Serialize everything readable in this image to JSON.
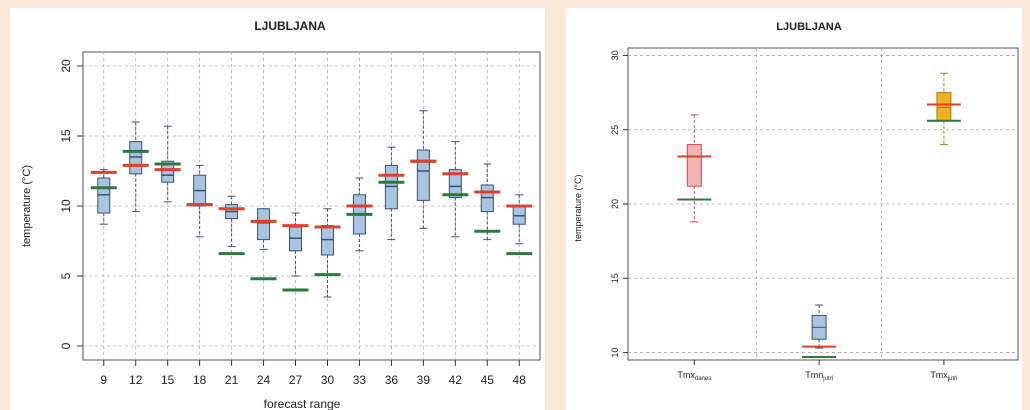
{
  "chart_data": [
    {
      "type": "boxplot",
      "title": "LJUBLJANA",
      "xlabel": "forecast range",
      "ylabel": "temperature (°C)",
      "ylim": [
        -1,
        21
      ],
      "yticks": [
        "0",
        "5",
        "10",
        "15",
        "20"
      ],
      "grid": true,
      "categories": [
        "9",
        "12",
        "15",
        "18",
        "21",
        "24",
        "27",
        "30",
        "33",
        "36",
        "39",
        "42",
        "45",
        "48"
      ],
      "boxes": [
        {
          "x": "9",
          "whisker_low": 8.7,
          "q1": 9.5,
          "median": 10.8,
          "q3": 12.0,
          "whisker_high": 12.6,
          "red": 12.4,
          "green": 11.3
        },
        {
          "x": "12",
          "whisker_low": 9.6,
          "q1": 12.3,
          "median": 13.5,
          "q3": 14.6,
          "whisker_high": 16.0,
          "red": 12.9,
          "green": 13.9
        },
        {
          "x": "15",
          "whisker_low": 10.3,
          "q1": 11.7,
          "median": 12.2,
          "q3": 13.2,
          "whisker_high": 15.7,
          "red": 12.6,
          "green": 13.0
        },
        {
          "x": "18",
          "whisker_low": 7.8,
          "q1": 10.0,
          "median": 11.1,
          "q3": 12.2,
          "whisker_high": 12.9,
          "red": 10.1,
          "green": 10.1
        },
        {
          "x": "21",
          "whisker_low": 7.1,
          "q1": 9.1,
          "median": 9.6,
          "q3": 10.1,
          "whisker_high": 10.7,
          "red": 9.8,
          "green": 6.6
        },
        {
          "x": "24",
          "whisker_low": 6.9,
          "q1": 7.6,
          "median": 8.8,
          "q3": 9.8,
          "whisker_high": 9.8,
          "red": 8.9,
          "green": 4.8
        },
        {
          "x": "27",
          "whisker_low": 5.0,
          "q1": 6.8,
          "median": 7.7,
          "q3": 8.5,
          "whisker_high": 9.5,
          "red": 8.6,
          "green": 4.0
        },
        {
          "x": "30",
          "whisker_low": 3.5,
          "q1": 6.5,
          "median": 7.6,
          "q3": 8.6,
          "whisker_high": 9.8,
          "red": 8.5,
          "green": 5.1
        },
        {
          "x": "33",
          "whisker_low": 6.8,
          "q1": 8.0,
          "median": 9.4,
          "q3": 10.8,
          "whisker_high": 12.0,
          "red": 10.0,
          "green": 9.4
        },
        {
          "x": "36",
          "whisker_low": 7.6,
          "q1": 9.8,
          "median": 11.4,
          "q3": 12.9,
          "whisker_high": 14.2,
          "red": 12.2,
          "green": 11.7
        },
        {
          "x": "39",
          "whisker_low": 8.4,
          "q1": 10.4,
          "median": 12.5,
          "q3": 14.0,
          "whisker_high": 16.8,
          "red": 13.2,
          "green": 13.2
        },
        {
          "x": "42",
          "whisker_low": 7.8,
          "q1": 10.6,
          "median": 11.4,
          "q3": 12.6,
          "whisker_high": 14.6,
          "red": 12.3,
          "green": 10.8
        },
        {
          "x": "45",
          "whisker_low": 7.6,
          "q1": 9.6,
          "median": 10.6,
          "q3": 11.5,
          "whisker_high": 13.0,
          "red": 11.0,
          "green": 8.2
        },
        {
          "x": "48",
          "whisker_low": 7.3,
          "q1": 8.7,
          "median": 9.3,
          "q3": 10.0,
          "whisker_high": 10.8,
          "red": 10.0,
          "green": 6.6
        }
      ],
      "colors": {
        "box": "#a8c4df",
        "box_edge": "#3a4f7a",
        "median_line": "#3a4f7a",
        "whisker": "#3a4ab0",
        "red": "#e0402a",
        "green": "#2a7a3a"
      }
    },
    {
      "type": "boxplot",
      "title": "LJUBLJANA",
      "ylabel": "temperature (°C)",
      "ylim": [
        9.5,
        30.5
      ],
      "yticks": [
        "10",
        "15",
        "20",
        "25",
        "30"
      ],
      "grid": true,
      "categories": [
        {
          "base": "Tmx",
          "sub": "danes"
        },
        {
          "base": "Tmn",
          "sub": "jutri"
        },
        {
          "base": "Tmx",
          "sub": "jutri"
        }
      ],
      "boxes": [
        {
          "whisker_low": 18.8,
          "q1": 21.2,
          "median": 23.2,
          "q3": 24.0,
          "whisker_high": 26.0,
          "red": 23.2,
          "green": 20.3,
          "fill": "#f4b4b4",
          "edge": "#d24848"
        },
        {
          "whisker_low": 10.3,
          "q1": 10.9,
          "median": 11.7,
          "q3": 12.5,
          "whisker_high": 13.2,
          "red": 10.4,
          "green": 9.7,
          "fill": "#a8c4df",
          "edge": "#3a4f7a"
        },
        {
          "whisker_low": 24.0,
          "q1": 25.6,
          "median": 26.5,
          "q3": 27.5,
          "whisker_high": 28.8,
          "red": 26.7,
          "green": 25.6,
          "fill": "#f0b020",
          "edge": "#b07a10"
        }
      ],
      "colors": {
        "red": "#e0402a",
        "green": "#2a7a3a"
      }
    }
  ]
}
